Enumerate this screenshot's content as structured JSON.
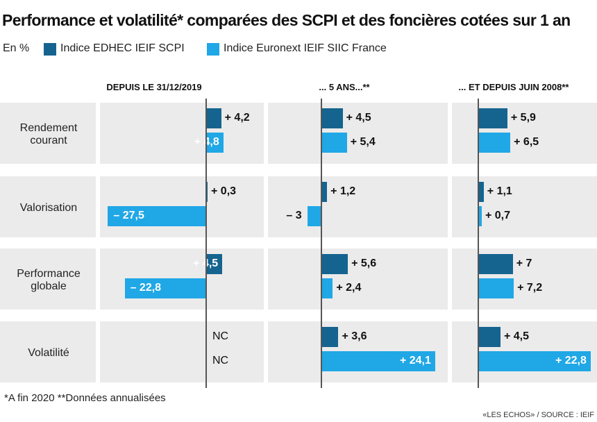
{
  "title": "Performance et volatilité* comparées des SCPI et des foncières cotées sur 1 an",
  "unit_label": "En %",
  "colors": {
    "scpi": "#15648f",
    "euronext": "#20a7e6",
    "background": "#ebebeb"
  },
  "chart_data": {
    "type": "bar",
    "orientation": "horizontal",
    "title": "Performance et volatilité* comparées des SCPI et des foncières cotées sur 1 an",
    "unit": "En %",
    "legend": [
      "Indice EDHEC IEIF SCPI",
      "Indice Euronext IEIF SIIC France"
    ],
    "legend_position": "top-left",
    "categories": [
      "Rendement courant",
      "Valorisation",
      "Performance globale",
      "Volatilité"
    ],
    "panels": [
      {
        "heading": "DEPUIS LE 31/12/2019",
        "series": [
          {
            "name": "Indice EDHEC IEIF SCPI",
            "values": [
              4.2,
              0.3,
              4.5,
              null
            ],
            "labels": [
              "+ 4,2",
              "+ 0,3",
              "+ 4,5",
              "NC"
            ]
          },
          {
            "name": "Indice Euronext IEIF SIIC France",
            "values": [
              4.8,
              -27.5,
              -22.8,
              null
            ],
            "labels": [
              "+ 4,8",
              "– 27,5",
              "– 22,8",
              "NC"
            ]
          }
        ]
      },
      {
        "heading": "... 5 ANS...**",
        "series": [
          {
            "name": "Indice EDHEC IEIF SCPI",
            "values": [
              4.5,
              1.2,
              5.6,
              3.6
            ],
            "labels": [
              "+ 4,5",
              "+ 1,2",
              "+ 5,6",
              "+ 3,6"
            ]
          },
          {
            "name": "Indice Euronext IEIF SIIC France",
            "values": [
              5.4,
              -3,
              2.4,
              24.1
            ],
            "labels": [
              "+ 5,4",
              "– 3",
              "+ 2,4",
              "+ 24,1"
            ]
          }
        ]
      },
      {
        "heading": "... ET DEPUIS JUIN 2008**",
        "series": [
          {
            "name": "Indice EDHEC IEIF SCPI",
            "values": [
              5.9,
              1.1,
              7,
              4.5
            ],
            "labels": [
              "+ 5,9",
              "+ 1,1",
              "+ 7",
              "+ 4,5"
            ]
          },
          {
            "name": "Indice Euronext IEIF SIIC France",
            "values": [
              6.5,
              0.7,
              7.2,
              22.8
            ],
            "labels": [
              "+ 6,5",
              "+ 0,7",
              "+ 7,2",
              "+ 22,8"
            ]
          }
        ]
      }
    ]
  },
  "row_label_lines": [
    [
      "Rendement",
      "courant"
    ],
    [
      "Valorisation"
    ],
    [
      "Performance",
      "globale"
    ],
    [
      "Volatilité"
    ]
  ],
  "footnote": "*A fin 2020     **Données annualisées",
  "source": "«LES ECHOS» / SOURCE : IEIF"
}
